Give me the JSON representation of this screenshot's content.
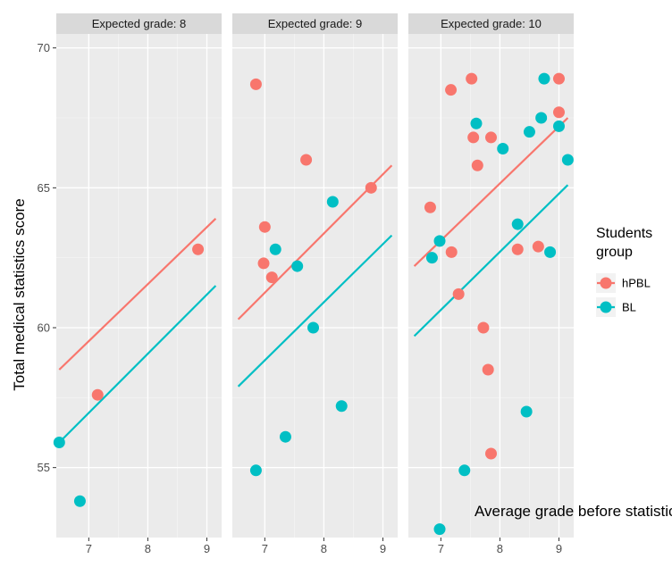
{
  "chart_data": {
    "type": "scatter",
    "xlabel": "Average grade before statistics",
    "ylabel": "Total medical statistics score",
    "facet_label_prefix": "Expected grade: ",
    "xlim": [
      6.45,
      9.25
    ],
    "ylim": [
      52.5,
      70.5
    ],
    "x_ticks": [
      7,
      8,
      9
    ],
    "y_ticks": [
      55,
      60,
      65,
      70
    ],
    "grid": true,
    "legend": {
      "title_lines": [
        "Students",
        "group"
      ],
      "position": "right"
    },
    "colors": {
      "hPBL": "#F8766D",
      "BL": "#00BFC4"
    },
    "panels": [
      {
        "expected_grade": "8",
        "series": [
          {
            "name": "hPBL",
            "points": [
              [
                7.15,
                57.6
              ],
              [
                8.85,
                62.8
              ]
            ],
            "fit": [
              [
                6.5,
                58.5
              ],
              [
                9.15,
                63.9
              ]
            ]
          },
          {
            "name": "BL",
            "points": [
              [
                6.5,
                55.9
              ],
              [
                6.85,
                53.8
              ]
            ],
            "fit": [
              [
                6.5,
                55.9
              ],
              [
                9.15,
                61.5
              ]
            ]
          }
        ]
      },
      {
        "expected_grade": "9",
        "series": [
          {
            "name": "hPBL",
            "points": [
              [
                6.85,
                68.7
              ],
              [
                7.0,
                63.6
              ],
              [
                6.98,
                62.3
              ],
              [
                7.12,
                61.8
              ],
              [
                7.7,
                66.0
              ],
              [
                8.8,
                65.0
              ]
            ],
            "fit": [
              [
                6.55,
                60.3
              ],
              [
                9.15,
                65.8
              ]
            ]
          },
          {
            "name": "BL",
            "points": [
              [
                6.85,
                54.9
              ],
              [
                7.18,
                62.8
              ],
              [
                7.35,
                56.1
              ],
              [
                7.55,
                62.2
              ],
              [
                7.82,
                60.0
              ],
              [
                8.15,
                64.5
              ],
              [
                8.3,
                57.2
              ]
            ],
            "fit": [
              [
                6.55,
                57.9
              ],
              [
                9.15,
                63.3
              ]
            ]
          }
        ]
      },
      {
        "expected_grade": "10",
        "series": [
          {
            "name": "hPBL",
            "points": [
              [
                6.82,
                64.3
              ],
              [
                7.18,
                62.7
              ],
              [
                7.17,
                68.5
              ],
              [
                7.3,
                61.2
              ],
              [
                7.52,
                68.9
              ],
              [
                7.55,
                66.8
              ],
              [
                7.62,
                65.8
              ],
              [
                7.72,
                60.0
              ],
              [
                7.8,
                58.5
              ],
              [
                7.85,
                66.8
              ],
              [
                7.85,
                55.5
              ],
              [
                8.3,
                62.8
              ],
              [
                8.65,
                62.9
              ],
              [
                9.0,
                67.7
              ],
              [
                9.0,
                68.9
              ]
            ],
            "fit": [
              [
                6.55,
                62.2
              ],
              [
                9.15,
                67.5
              ]
            ]
          },
          {
            "name": "BL",
            "points": [
              [
                6.85,
                62.5
              ],
              [
                6.98,
                63.1
              ],
              [
                6.98,
                52.8
              ],
              [
                7.4,
                54.9
              ],
              [
                7.6,
                67.3
              ],
              [
                8.05,
                66.4
              ],
              [
                8.3,
                63.7
              ],
              [
                8.45,
                57.0
              ],
              [
                8.5,
                67.0
              ],
              [
                8.7,
                67.5
              ],
              [
                8.75,
                68.9
              ],
              [
                8.85,
                62.7
              ],
              [
                9.0,
                67.2
              ],
              [
                9.15,
                66.0
              ]
            ],
            "fit": [
              [
                6.55,
                59.7
              ],
              [
                9.15,
                65.1
              ]
            ]
          }
        ]
      }
    ]
  }
}
